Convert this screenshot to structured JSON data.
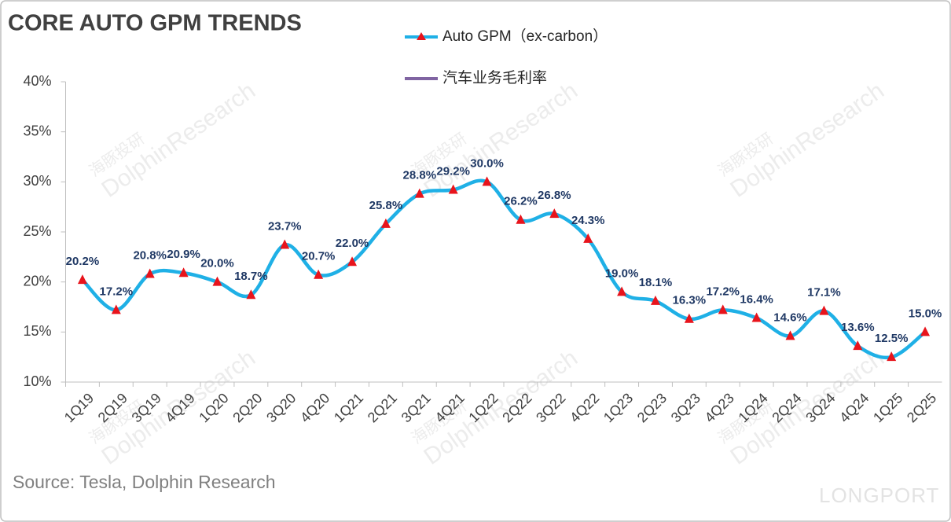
{
  "chart_data": {
    "type": "line",
    "title": "CORE AUTO GPM TRENDS",
    "source": "Source: Tesla, Dolphin Research",
    "watermark": [
      "海豚投研",
      "DolphinResearch"
    ],
    "logo": "LONGPORT",
    "categories": [
      "1Q19",
      "2Q19",
      "3Q19",
      "4Q19",
      "1Q20",
      "2Q20",
      "3Q20",
      "4Q20",
      "1Q21",
      "2Q21",
      "3Q21",
      "4Q21",
      "1Q22",
      "2Q22",
      "3Q22",
      "4Q22",
      "1Q23",
      "2Q23",
      "3Q23",
      "4Q23",
      "1Q24",
      "2Q24",
      "3Q24",
      "4Q24",
      "1Q25",
      "2Q25"
    ],
    "series": [
      {
        "name": "Auto GPM（ex-carbon）",
        "color": "#1fb0e6",
        "marker_color": "#e8141c",
        "values": [
          20.2,
          17.2,
          20.8,
          20.9,
          20.0,
          18.7,
          23.7,
          20.7,
          22.0,
          25.8,
          28.8,
          29.2,
          30.0,
          26.2,
          26.8,
          24.3,
          19.0,
          18.1,
          16.3,
          17.2,
          16.4,
          14.6,
          17.1,
          13.6,
          12.5,
          15.0
        ],
        "value_labels": [
          "20.2%",
          "17.2%",
          "20.8%",
          "20.9%",
          "20.0%",
          "18.7%",
          "23.7%",
          "20.7%",
          "22.0%",
          "25.8%",
          "28.8%",
          "29.2%",
          "30.0%",
          "26.2%",
          "26.8%",
          "24.3%",
          "19.0%",
          "18.1%",
          "16.3%",
          "17.2%",
          "16.4%",
          "14.6%",
          "17.1%",
          "13.6%",
          "12.5%",
          "15.0%"
        ]
      },
      {
        "name": "汽车业务毛利率",
        "color": "#8064a2",
        "values": [
          null,
          null,
          null,
          null,
          null,
          null,
          null,
          null,
          null,
          null,
          null,
          null,
          null,
          null,
          null,
          null,
          null,
          null,
          null,
          null,
          null,
          null,
          null,
          null,
          null,
          null
        ]
      }
    ],
    "ylim": [
      10,
      40
    ],
    "yticks": [
      {
        "value": 10,
        "label": "10%"
      },
      {
        "value": 15,
        "label": "15%"
      },
      {
        "value": 20,
        "label": "20%"
      },
      {
        "value": 25,
        "label": "25%"
      },
      {
        "value": 30,
        "label": "30%"
      },
      {
        "value": 35,
        "label": "35%"
      },
      {
        "value": 40,
        "label": "40%"
      }
    ],
    "grid": false
  }
}
